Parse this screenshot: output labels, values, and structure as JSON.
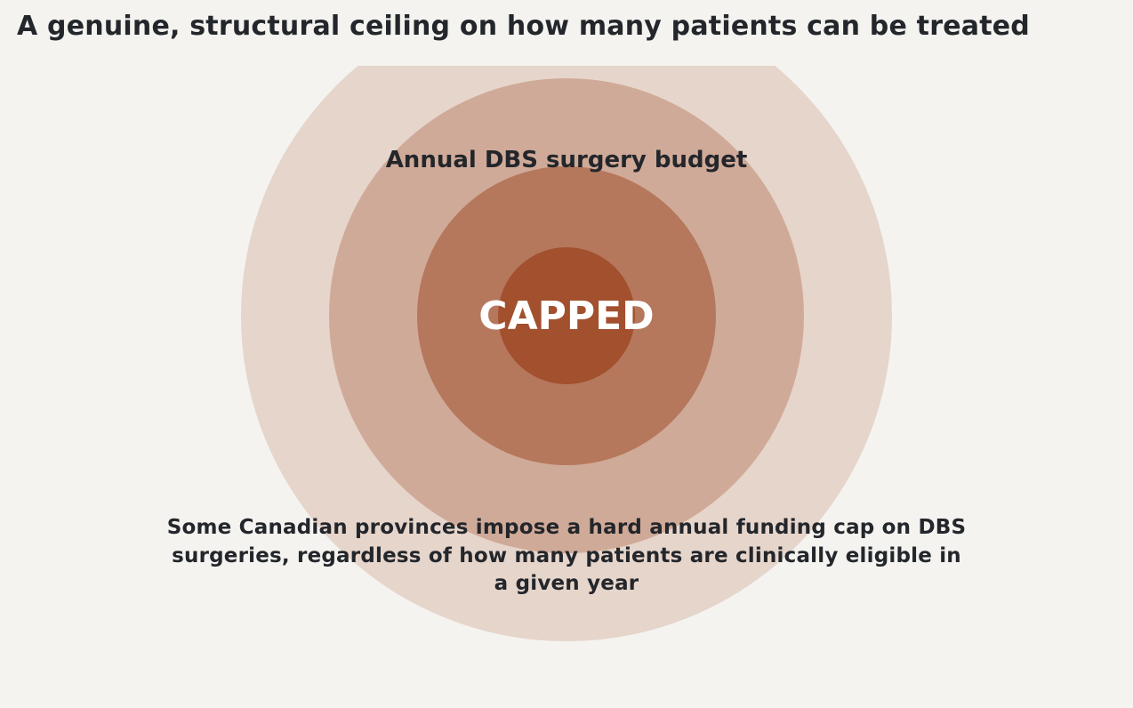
{
  "title": "A genuine, structural ceiling on how many patients can be treated",
  "diagram": {
    "ring_label": "Annual DBS surgery budget",
    "center_label": "CAPPED",
    "description": "Some Canadian provinces impose a hard annual funding cap on DBS surgeries, regardless of how many patients are clinically eligible in a given year",
    "colors": {
      "background": "#f4f3ef",
      "ring_outer": "#e6d5cb",
      "ring_second": "#d0aa98",
      "ring_third": "#b5785d",
      "core": "#a2502d",
      "text": "#23262b",
      "center_text": "#ffffff"
    }
  }
}
